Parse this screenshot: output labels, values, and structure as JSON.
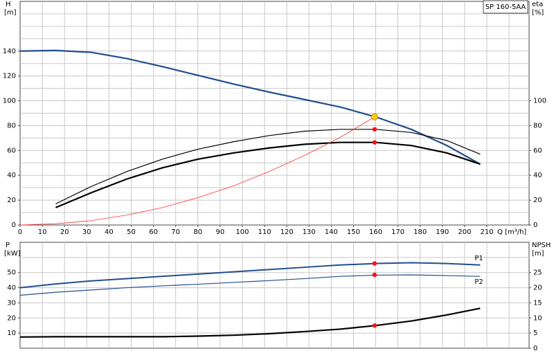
{
  "chart_data": [
    {
      "type": "line",
      "legend_box": "SP 160-5AA",
      "xlabel": "Q [m³/h]",
      "y_title": "H",
      "y_unit": "[m]",
      "y2_title": "eta",
      "y2_unit": "[%]",
      "xlim": [
        0,
        229
      ],
      "xticks": [
        0,
        10,
        20,
        30,
        40,
        50,
        60,
        70,
        80,
        90,
        100,
        110,
        120,
        130,
        140,
        150,
        160,
        170,
        180,
        190,
        200,
        210
      ],
      "xgrid": [
        10,
        20,
        30,
        40,
        50,
        60,
        70,
        80,
        90,
        100,
        110,
        120,
        130,
        140,
        150,
        160,
        170,
        180,
        190,
        200,
        210,
        220
      ],
      "ylim": [
        0,
        180
      ],
      "yticks": [
        0,
        20,
        40,
        60,
        80,
        100,
        120,
        140
      ],
      "ygrid": [
        10,
        20,
        30,
        40,
        50,
        60,
        70,
        80,
        90,
        100,
        110,
        120,
        130,
        140,
        150,
        160,
        170
      ],
      "y2lim": [
        0,
        180
      ],
      "y2ticks": [
        0,
        20,
        40,
        60,
        80,
        100
      ],
      "series": [
        {
          "color": "#1f4e8c",
          "width": 2.2,
          "x": [
            0,
            16,
            32,
            48,
            64,
            80,
            96,
            112,
            128,
            144,
            160,
            176,
            192,
            207
          ],
          "values": [
            140,
            140.5,
            139,
            134,
            127.5,
            120.5,
            113.5,
            107,
            101,
            95,
            87,
            77,
            64,
            49
          ]
        },
        {
          "color": "#000000",
          "width": 2.2,
          "axis": "y2",
          "x": [
            16,
            32,
            48,
            64,
            80,
            96,
            112,
            128,
            144,
            160,
            176,
            192,
            207
          ],
          "values": [
            14,
            26,
            37,
            46,
            53,
            58,
            62,
            65,
            66.5,
            66.5,
            64,
            58,
            49
          ]
        },
        {
          "color": "#000000",
          "width": 1.2,
          "axis": "y2",
          "x": [
            16,
            32,
            48,
            64,
            80,
            96,
            112,
            128,
            144,
            160,
            176,
            192,
            207
          ],
          "values": [
            17,
            31,
            43,
            53,
            61,
            67,
            72,
            75.5,
            77,
            77,
            74.5,
            68,
            57
          ]
        },
        {
          "color": "#ff3030",
          "width": 0.8,
          "x": [
            0,
            16,
            32,
            48,
            64,
            80,
            96,
            112,
            128,
            144,
            159.5
          ],
          "values": [
            0,
            1,
            3.5,
            8,
            14,
            22,
            31.5,
            43,
            56,
            70.5,
            87
          ]
        }
      ],
      "points": [
        {
          "x": 159.5,
          "y": 87,
          "color": "#f5d000"
        },
        {
          "x": 159.5,
          "y": 77,
          "color": "#ff1010",
          "axis": "y2"
        },
        {
          "x": 159.5,
          "y": 66.5,
          "color": "#ff1010",
          "axis": "y2"
        }
      ]
    },
    {
      "type": "line",
      "y_title": "P",
      "y_unit": "[kW]",
      "y2_title": "NPSH",
      "y2_unit": "[m]",
      "xlim": [
        0,
        229
      ],
      "xgrid": [
        10,
        20,
        30,
        40,
        50,
        60,
        70,
        80,
        90,
        100,
        110,
        120,
        130,
        140,
        150,
        160,
        170,
        180,
        190,
        200,
        210,
        220
      ],
      "ylim": [
        0,
        70
      ],
      "yticks": [
        10,
        20,
        30,
        40,
        50
      ],
      "ygrid": [
        10,
        20,
        30,
        40,
        50,
        60
      ],
      "y2lim": [
        0,
        35
      ],
      "y2ticks": [
        0,
        5,
        10,
        15,
        20,
        25
      ],
      "series": [
        {
          "name": "P1",
          "color": "#1f4e8c",
          "width": 2,
          "x": [
            0,
            16,
            32,
            48,
            64,
            80,
            96,
            112,
            128,
            144,
            160,
            176,
            192,
            207
          ],
          "values": [
            40,
            42.5,
            44.5,
            46,
            47.5,
            49,
            50.5,
            52,
            53.5,
            55,
            56,
            56.5,
            56,
            55
          ]
        },
        {
          "name": "P2",
          "color": "#1f4e8c",
          "width": 1.2,
          "x": [
            0,
            16,
            32,
            48,
            64,
            80,
            96,
            112,
            128,
            144,
            160,
            176,
            192,
            207
          ],
          "values": [
            35,
            37,
            38.5,
            40,
            41.2,
            42.3,
            43.5,
            44.7,
            46,
            47.5,
            48.3,
            48.5,
            48,
            47.5
          ]
        },
        {
          "color": "#000000",
          "width": 2.2,
          "axis": "y2",
          "x": [
            0,
            16,
            32,
            48,
            64,
            80,
            96,
            112,
            128,
            144,
            160,
            176,
            192,
            207
          ],
          "values": [
            3.7,
            3.8,
            3.8,
            3.8,
            3.8,
            4,
            4.3,
            4.8,
            5.5,
            6.3,
            7.5,
            9,
            11,
            13.2
          ]
        }
      ],
      "points": [
        {
          "x": 159.5,
          "y": 56,
          "color": "#ff1010"
        },
        {
          "x": 159.5,
          "y": 48.5,
          "color": "#ff1010"
        },
        {
          "x": 159.5,
          "y": 7.5,
          "color": "#ff1010",
          "axis": "y2"
        }
      ]
    }
  ]
}
